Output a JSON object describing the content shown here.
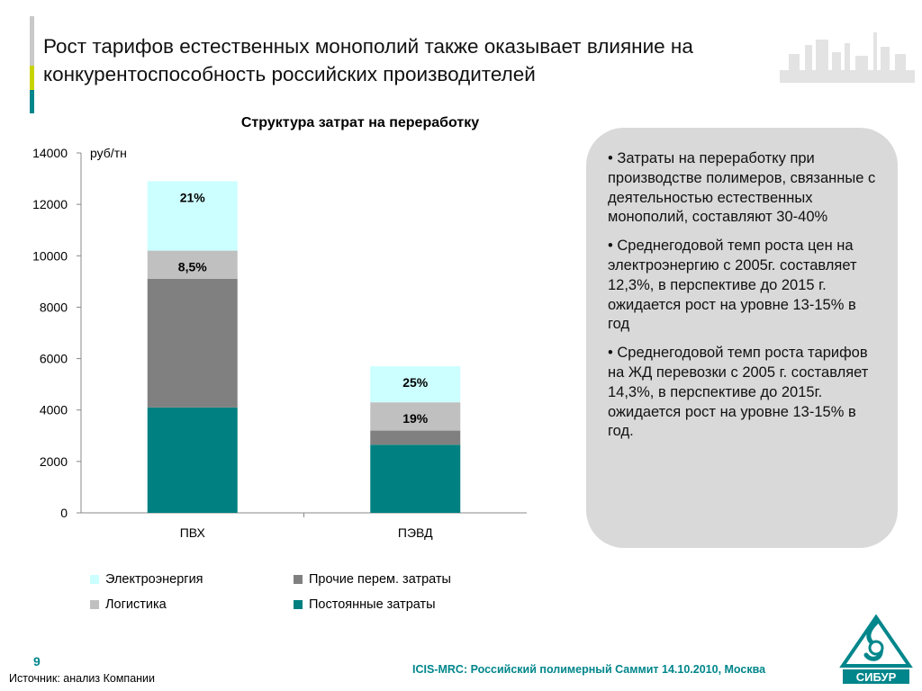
{
  "title_lines": [
    "Рост тарифов естественных монополий также оказывает влияние на",
    "конкурентоспособность российских производителей"
  ],
  "chart_data": {
    "type": "bar",
    "stacked": true,
    "title": "Структура затрат на переработку",
    "unit_label": "руб/тн",
    "categories": [
      "ПВХ",
      "ПЭВД"
    ],
    "ylim": [
      0,
      14000
    ],
    "yticks": [
      0,
      2000,
      4000,
      6000,
      8000,
      10000,
      12000,
      14000
    ],
    "grid": false,
    "legend_position": "bottom",
    "series": [
      {
        "name": "Постоянные затраты",
        "color": "#008080",
        "values": [
          4100,
          2650
        ],
        "labels": [
          "",
          ""
        ]
      },
      {
        "name": "Прочие перем. затраты",
        "color": "#808080",
        "values": [
          5000,
          550
        ],
        "labels": [
          "",
          ""
        ]
      },
      {
        "name": "Логистика",
        "color": "#c0c0c0",
        "values": [
          1100,
          1100
        ],
        "labels": [
          "8,5%",
          "19%"
        ]
      },
      {
        "name": "Электроэнергия",
        "color": "#ccffff",
        "values": [
          2700,
          1400
        ],
        "labels": [
          "21%",
          "25%"
        ]
      }
    ],
    "legend_order": [
      "Электроэнергия",
      "Прочие перем. затраты",
      "Логистика",
      "Постоянные затраты"
    ]
  },
  "notes": [
    "• Затраты на переработку при производстве полимеров, связанные с деятельностью естественных монополий, составляют 30-40%",
    "• Среднегодовой темп роста цен на электроэнергию с 2005г. составляет 12,3%, в перспективе до 2015 г. ожидается рост на уровне 13-15% в год",
    "•  Среднегодовой темп роста тарифов на ЖД перевозки с 2005 г. составляет 14,3%, в перспективе до 2015г. ожидается рост на уровне 13-15% в год."
  ],
  "page_number": "9",
  "source": "Источник: анализ Компании",
  "footer": "ICIS-MRC: Российский полимерный Саммит 14.10.2010, Москва",
  "logo": {
    "text": "СИБУР",
    "color": "#00868b"
  },
  "colors": {
    "accent_gray": "#c9c9c9",
    "accent_lime": "#c8d400",
    "accent_teal": "#00868b",
    "notes_bg": "#d9d9d9"
  }
}
